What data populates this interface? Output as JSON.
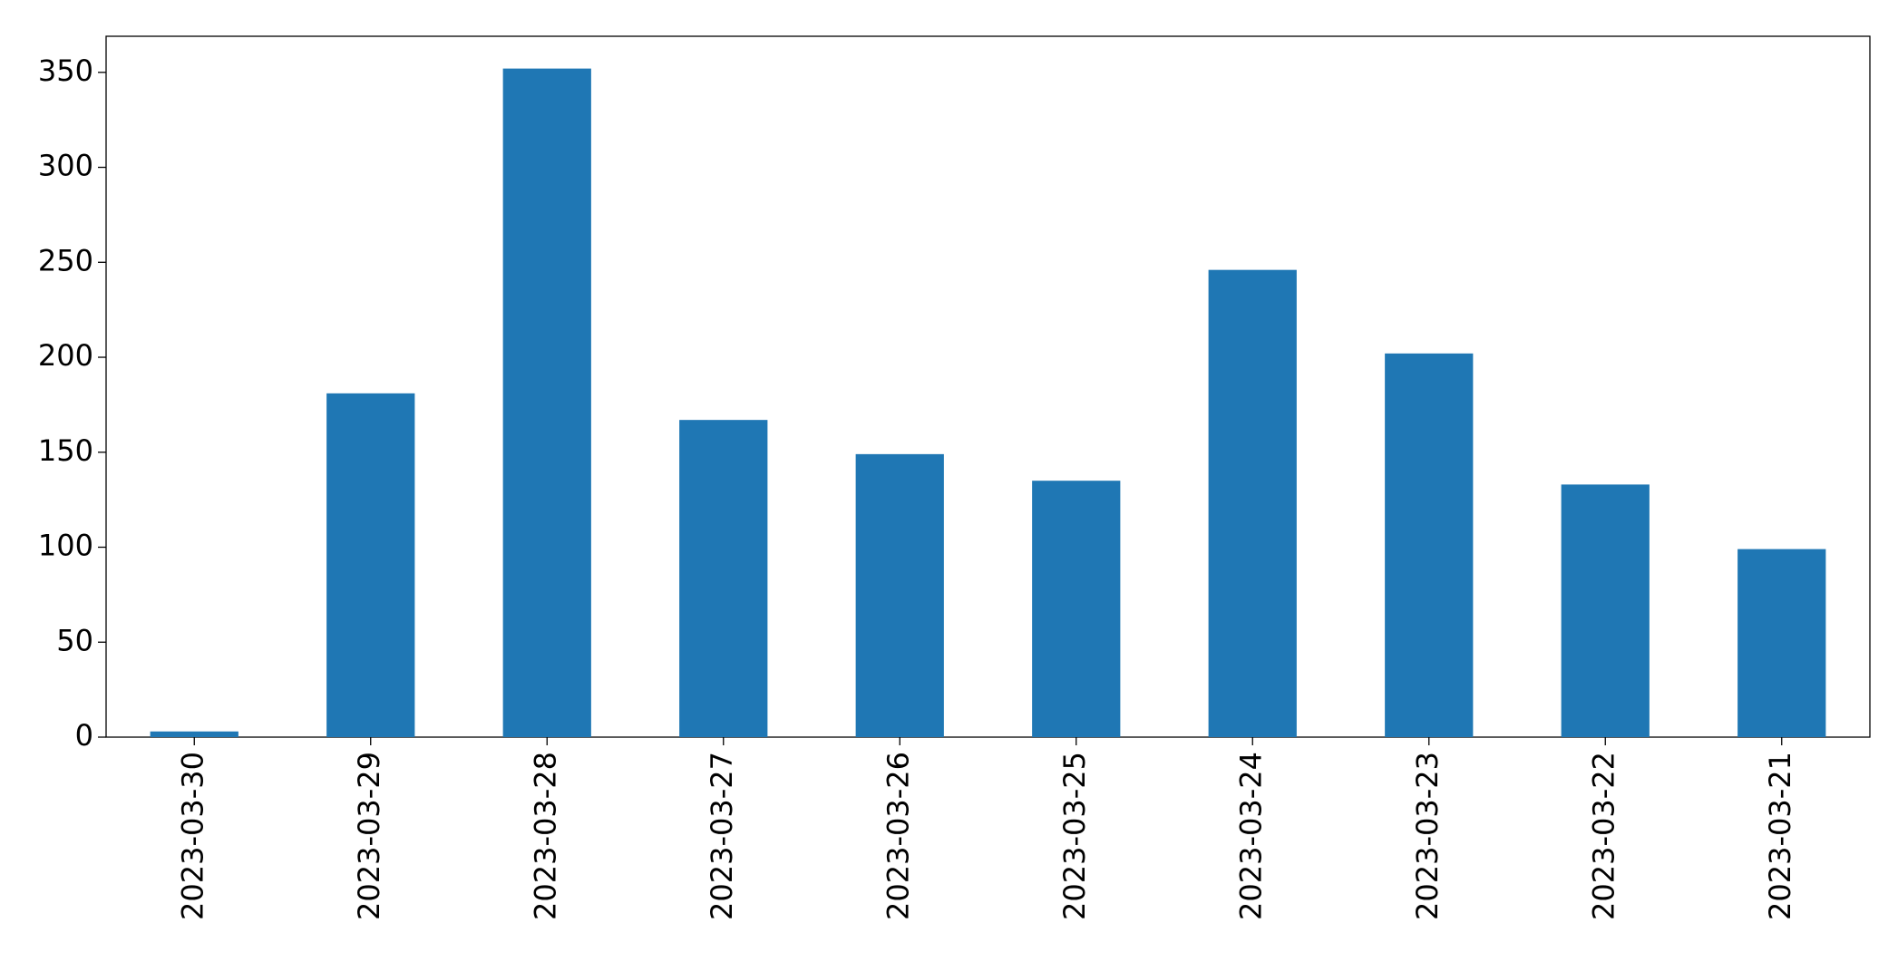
{
  "chart_data": {
    "type": "bar",
    "categories": [
      "2023-03-30",
      "2023-03-29",
      "2023-03-28",
      "2023-03-27",
      "2023-03-26",
      "2023-03-25",
      "2023-03-24",
      "2023-03-23",
      "2023-03-22",
      "2023-03-21"
    ],
    "values": [
      3,
      181,
      352,
      167,
      149,
      135,
      246,
      202,
      133,
      99
    ],
    "color": "#1f77b4",
    "ylim": [
      0,
      369
    ],
    "yticks": [
      0,
      50,
      100,
      150,
      200,
      250,
      300,
      350
    ],
    "grid": false
  }
}
